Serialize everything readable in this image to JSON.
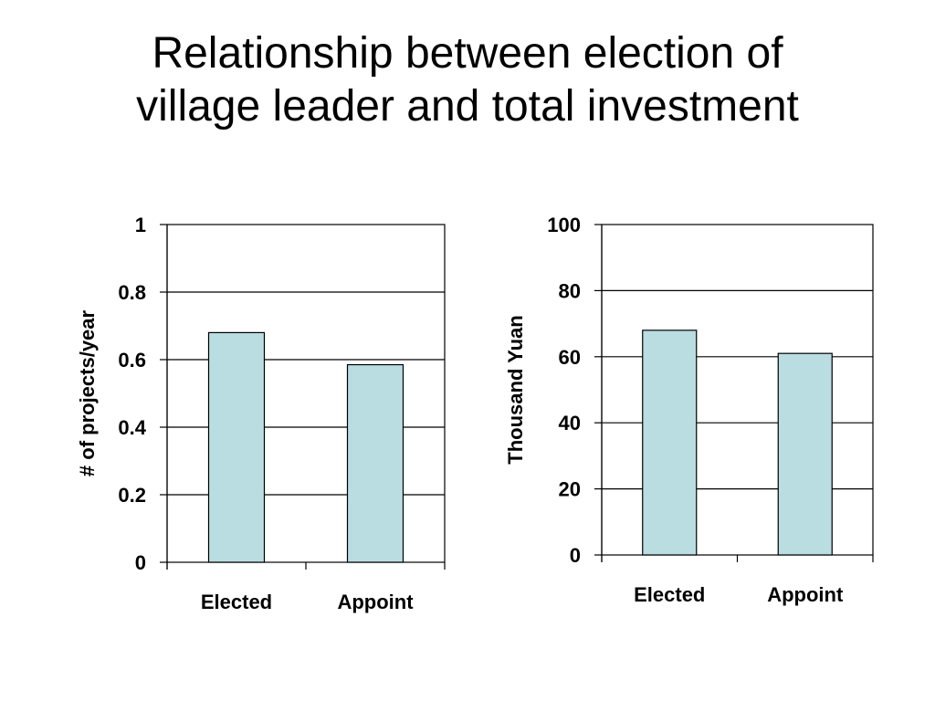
{
  "slide": {
    "title_line1": "Relationship between election of",
    "title_line2": "village leader and total investment"
  },
  "colors": {
    "bar_fill": "#b9dde1",
    "bar_stroke": "#000000",
    "gridline": "#000000",
    "axis": "#000000"
  },
  "chart_data": [
    {
      "type": "bar",
      "title": "",
      "xlabel": "",
      "ylabel": "# of projects/year",
      "categories": [
        "Elected",
        "Appoint"
      ],
      "values": [
        0.68,
        0.585
      ],
      "ylim": [
        0,
        1
      ],
      "yticks": [
        0,
        0.2,
        0.4,
        0.6,
        0.8,
        1
      ],
      "ytick_labels": [
        "0",
        "0.2",
        "0.4",
        "0.6",
        "0.8",
        "1"
      ],
      "grid": true,
      "legend": "none"
    },
    {
      "type": "bar",
      "title": "",
      "xlabel": "",
      "ylabel": "Thousand Yuan",
      "categories": [
        "Elected",
        "Appoint"
      ],
      "values": [
        68,
        61
      ],
      "ylim": [
        0,
        100
      ],
      "yticks": [
        0,
        20,
        40,
        60,
        80,
        100
      ],
      "ytick_labels": [
        "0",
        "20",
        "40",
        "60",
        "80",
        "100"
      ],
      "grid": true,
      "legend": "none"
    }
  ]
}
